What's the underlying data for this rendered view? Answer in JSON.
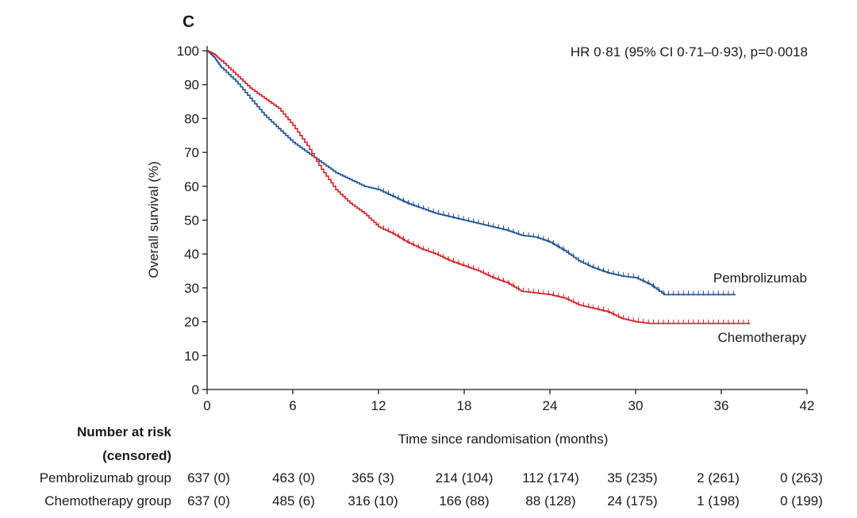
{
  "chart_data": {
    "type": "line",
    "panel_label": "C",
    "annotation": "HR 0·81 (95% CI 0·71–0·93), p=0·0018",
    "xlabel": "Time since randomisation (months)",
    "ylabel": "Overall survival (%)",
    "xlim": [
      0,
      42
    ],
    "ylim": [
      0,
      100
    ],
    "xticks": [
      "0",
      "6",
      "12",
      "18",
      "24",
      "30",
      "36",
      "42"
    ],
    "yticks": [
      "0",
      "10",
      "20",
      "30",
      "40",
      "50",
      "60",
      "70",
      "80",
      "90",
      "100"
    ],
    "series": [
      {
        "name": "Pembrolizumab",
        "color": "#1d4f91",
        "x": [
          0,
          0.5,
          1,
          2,
          3,
          4,
          5,
          6,
          7,
          8,
          9,
          10,
          11,
          12,
          13,
          14,
          15,
          16,
          17,
          18,
          19,
          20,
          21,
          22,
          23,
          24,
          25,
          26,
          27,
          28,
          29,
          30,
          31,
          32,
          33,
          34,
          35,
          36,
          37
        ],
        "values": [
          100,
          98,
          95,
          91,
          86,
          81,
          77,
          73,
          70,
          67,
          64,
          62,
          60,
          59,
          57,
          55,
          53.5,
          52,
          51,
          50,
          49,
          48,
          47,
          45.5,
          45,
          43.5,
          41,
          38,
          36,
          34.5,
          33.5,
          33,
          31,
          28,
          28,
          28,
          28,
          28,
          28
        ]
      },
      {
        "name": "Chemotherapy",
        "color": "#d42027",
        "x": [
          0,
          0.5,
          1,
          2,
          3,
          4,
          5,
          6,
          7,
          8,
          9,
          10,
          11,
          12,
          13,
          14,
          15,
          16,
          17,
          18,
          19,
          20,
          21,
          22,
          23,
          24,
          25,
          26,
          27,
          28,
          29,
          30,
          31,
          32,
          33,
          34,
          35,
          36,
          37,
          38
        ],
        "values": [
          100,
          99,
          97,
          93,
          89,
          86,
          83,
          78,
          72,
          65,
          59,
          55,
          52,
          48,
          46,
          43.5,
          41.5,
          40,
          38,
          36.5,
          35,
          33,
          31.5,
          29,
          28.5,
          28,
          27,
          25,
          24,
          23,
          21,
          20,
          19.5,
          19.5,
          19.5,
          19.5,
          19.5,
          19.5,
          19.5,
          19.5
        ]
      }
    ],
    "legend": [
      "Pembrolizumab",
      "Chemotherapy"
    ]
  },
  "risk_table": {
    "header_line1": "Number at risk",
    "header_line2": "(censored)",
    "rows": [
      {
        "label": "Pembrolizumab group",
        "values": [
          "637 (0)",
          "463 (0)",
          "365 (3)",
          "214 (104)",
          "112 (174)",
          "35 (235)",
          "2 (261)",
          "0 (263)"
        ]
      },
      {
        "label": "Chemotherapy group",
        "values": [
          "637 (0)",
          "485 (6)",
          "316 (10)",
          "166 (88)",
          "88 (128)",
          "24 (175)",
          "1 (198)",
          "0 (199)"
        ]
      }
    ]
  }
}
